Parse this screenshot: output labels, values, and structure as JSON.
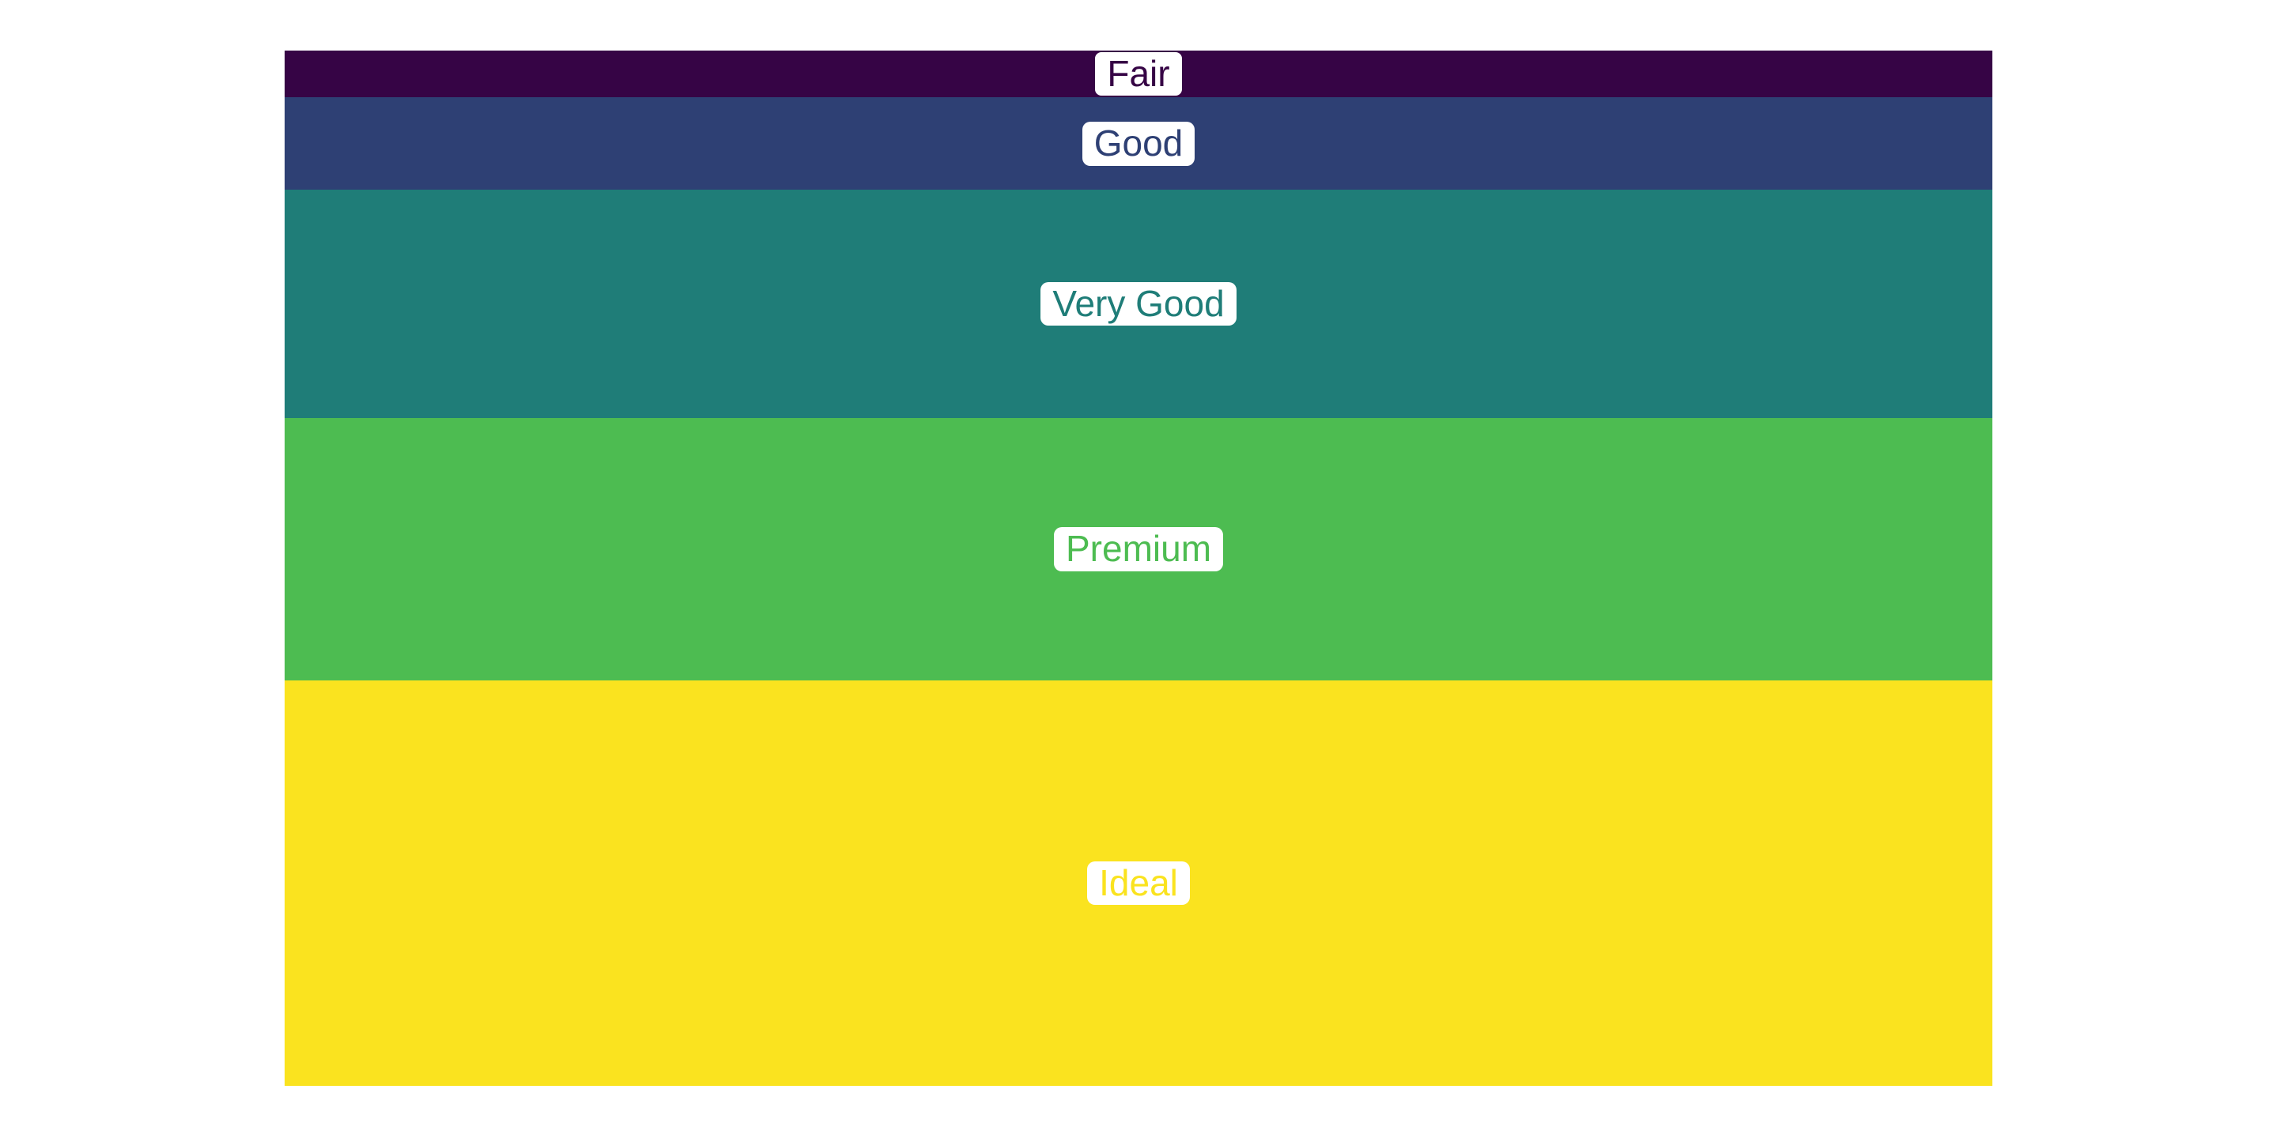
{
  "page": {
    "background": "#ffffff"
  },
  "chart_data": {
    "type": "bar",
    "variant": "single-column 100% stacked (icicle-style), segments stacked top to bottom",
    "title": "",
    "xlabel": "",
    "ylabel": "",
    "legend": "none",
    "axes": "none",
    "grid": false,
    "categories": [
      "Fair",
      "Good",
      "Very Good",
      "Premium",
      "Ideal"
    ],
    "values_pct_of_stack": [
      3.05,
      9.08,
      22.37,
      25.73,
      39.77
    ],
    "palette_name": "viridis-like",
    "segments": [
      {
        "label": "Fair",
        "share_pct": 3.05,
        "color": "#360445",
        "label_bordered": true
      },
      {
        "label": "Good",
        "share_pct": 9.08,
        "color": "#2e4074",
        "label_bordered": false
      },
      {
        "label": "Very Good",
        "share_pct": 22.37,
        "color": "#1f7d78",
        "label_bordered": false
      },
      {
        "label": "Premium",
        "share_pct": 25.73,
        "color": "#4dbc51",
        "label_bordered": false
      },
      {
        "label": "Ideal",
        "share_pct": 39.77,
        "color": "#fae31f",
        "label_bordered": false
      }
    ],
    "label_pill_style": {
      "background": "#ffffff",
      "text_color_rule": "same as segment color",
      "border_rule": "2.5px solid segment color when label_bordered, else none",
      "border_radius_px": 10
    }
  }
}
